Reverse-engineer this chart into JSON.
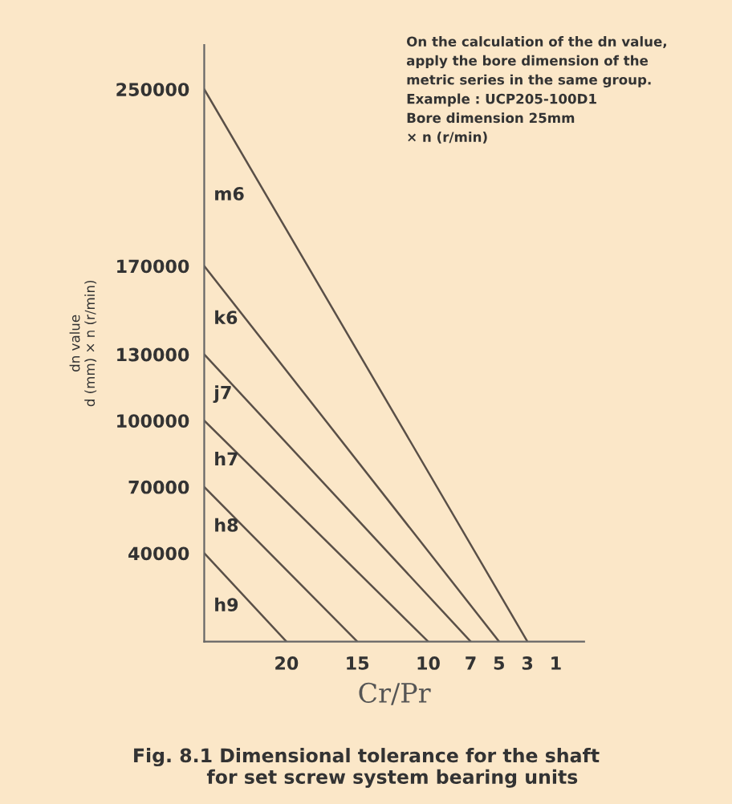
{
  "chart_data": {
    "type": "line",
    "title": "Fig. 8.1 Dimensional tolerance for the shaft\n        for set screw system bearing units",
    "xlabel": "Cr/Pr",
    "ylabel": "dn value\nd (mm) × n (r/min)",
    "annotations": [
      "On the calculation of the dn value,\napply the bore dimension of the\nmetric series in the same group.\nExample : UCP205-100D1\nBore dimension 25mm\n× n (r/min)"
    ],
    "xlim": [
      25.8,
      -1
    ],
    "xticks": [
      20,
      15,
      10,
      7,
      5,
      3,
      1
    ],
    "ylim": [
      0,
      270000
    ],
    "yticks": [
      40000,
      70000,
      100000,
      130000,
      170000,
      250000
    ],
    "grid": false,
    "legend": false,
    "marker": "none",
    "line_style": "solid",
    "series": [
      {
        "name": "m6",
        "color": "#5a5048",
        "x": [
          25.8,
          3
        ],
        "values": [
          250000,
          0
        ]
      },
      {
        "name": "k6",
        "color": "#5a5048",
        "x": [
          25.8,
          5
        ],
        "values": [
          170000,
          0
        ]
      },
      {
        "name": "j7",
        "color": "#5a5048",
        "x": [
          25.8,
          7
        ],
        "values": [
          130000,
          0
        ]
      },
      {
        "name": "h7",
        "color": "#5a5048",
        "x": [
          25.8,
          10
        ],
        "values": [
          100000,
          0
        ]
      },
      {
        "name": "h8",
        "color": "#5a5048",
        "x": [
          25.8,
          15
        ],
        "values": [
          70000,
          0
        ]
      },
      {
        "name": "h9",
        "color": "#5a5048",
        "x": [
          25.8,
          20
        ],
        "values": [
          40000,
          0
        ]
      }
    ]
  }
}
